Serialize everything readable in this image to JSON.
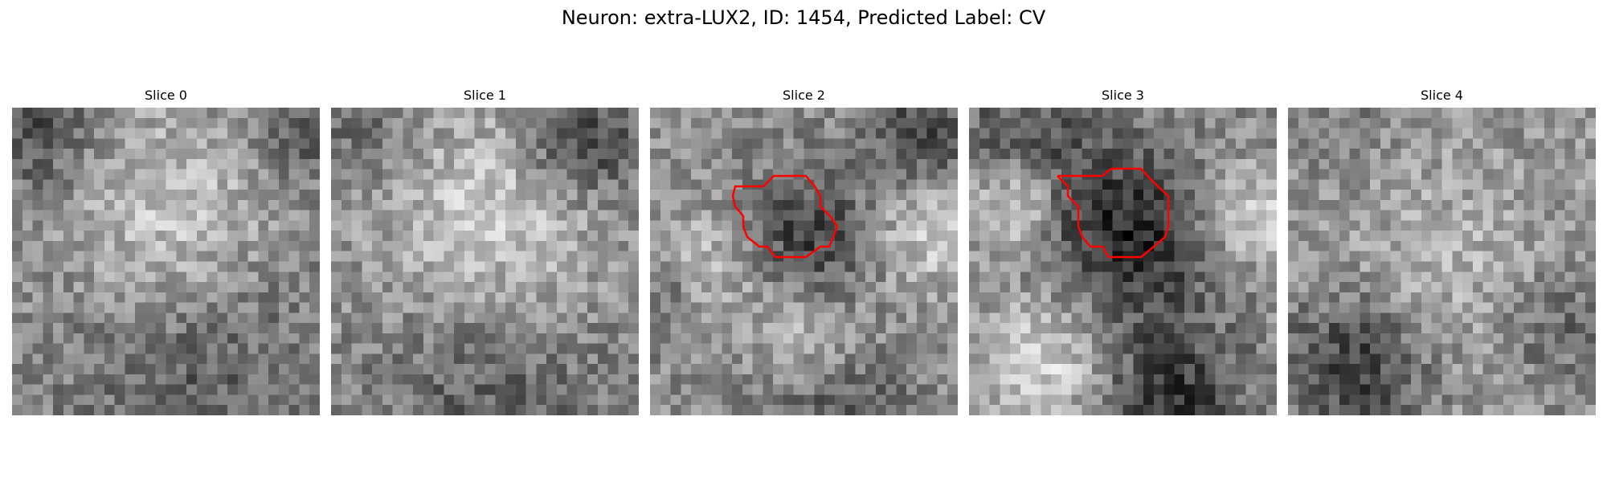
{
  "figure": {
    "title": "Neuron: extra-LUX2, ID: 1454, Predicted Label: CV"
  },
  "panels": [
    {
      "title": "Slice 0",
      "has_contour": false
    },
    {
      "title": "Slice 1",
      "has_contour": false
    },
    {
      "title": "Slice 2",
      "has_contour": true
    },
    {
      "title": "Slice 3",
      "has_contour": true
    },
    {
      "title": "Slice 4",
      "has_contour": false
    }
  ],
  "colors": {
    "contour": "#ff0000",
    "colormap": "gray"
  }
}
